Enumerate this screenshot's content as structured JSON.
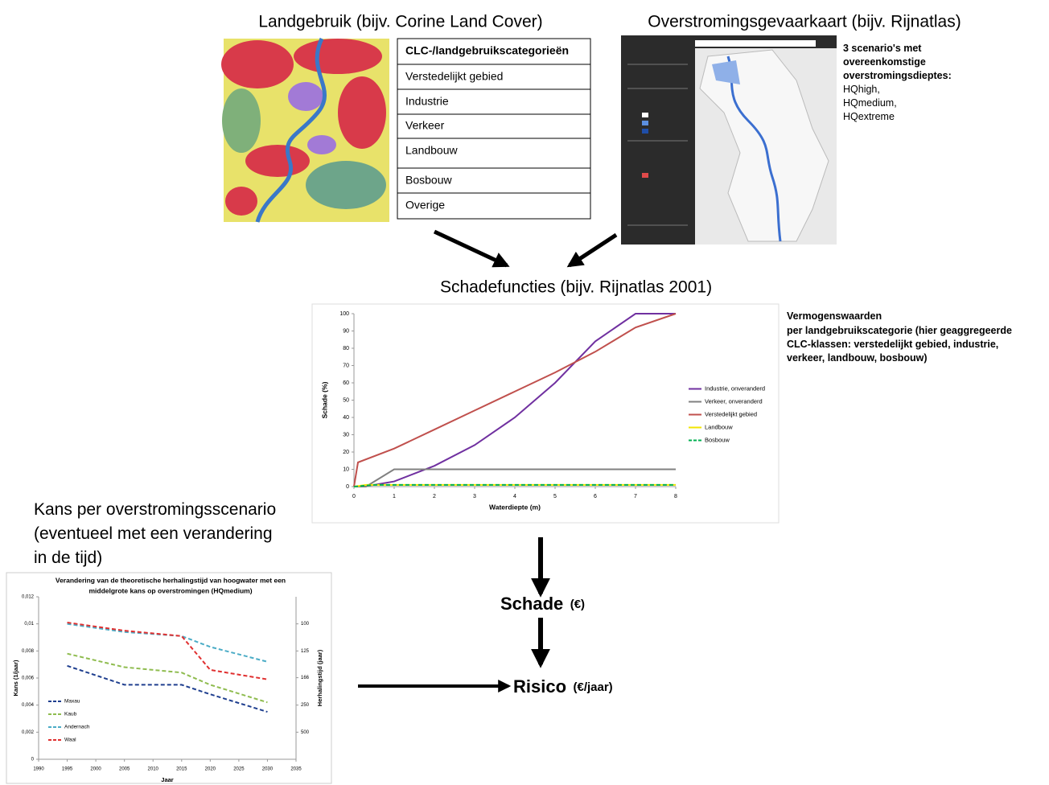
{
  "land_use": {
    "title": "Landgebruik (bijv. Corine Land Cover)",
    "table": {
      "header": "CLC-/landgebruikscategorieën",
      "rows": [
        "Verstedelijkt gebied",
        "Industrie",
        "Verkeer",
        "Landbouw",
        "Bosbouw",
        "Overige"
      ]
    }
  },
  "flood_map": {
    "title": "Overstromingsgevaarkaart (bijv. Rijnatlas)",
    "note": [
      "3 scenario's met",
      "overeenkomstige",
      "overstromingsdieptes:"
    ],
    "scenarios": [
      "HQhigh,",
      "HQmedium,",
      "HQextreme"
    ]
  },
  "damage": {
    "title": "Schadefuncties (bijv. Rijnatlas 2001)",
    "chart_data": {
      "type": "line",
      "xlabel": "Waterdiepte (m)",
      "ylabel": "Schade (%)",
      "xlim": [
        0,
        8
      ],
      "xticks": [
        0,
        1,
        2,
        3,
        4,
        5,
        6,
        7,
        8
      ],
      "ylim": [
        0,
        100
      ],
      "yticks": [
        0,
        10,
        20,
        30,
        40,
        50,
        60,
        70,
        80,
        90,
        100
      ],
      "legend": "right",
      "series": [
        {
          "name": "Industrie, onveranderd",
          "color": "#7030a0",
          "dashed": false,
          "x": [
            0,
            0.5,
            1,
            2,
            3,
            4,
            5,
            6,
            7,
            8
          ],
          "values": [
            0,
            1,
            3,
            12,
            24,
            40,
            60,
            84,
            100,
            100
          ]
        },
        {
          "name": "Verkeer, onveranderd",
          "color": "#808080",
          "dashed": false,
          "x": [
            0,
            0.3,
            1,
            8
          ],
          "values": [
            0,
            0,
            10,
            10
          ]
        },
        {
          "name": "Verstedelijkt gebied",
          "color": "#c0504d",
          "dashed": false,
          "x": [
            0,
            0.1,
            1,
            2,
            3,
            4,
            5,
            6,
            7,
            8
          ],
          "values": [
            0,
            14,
            22,
            33,
            44,
            55,
            66,
            78,
            92,
            100
          ]
        },
        {
          "name": "Landbouw",
          "color": "#f2e600",
          "dashed": false,
          "x": [
            0,
            0.3,
            8
          ],
          "values": [
            0,
            1,
            1
          ]
        },
        {
          "name": "Bosbouw",
          "color": "#00b050",
          "dashed": true,
          "x": [
            0,
            0.5,
            8
          ],
          "values": [
            0,
            1,
            1
          ]
        }
      ]
    },
    "asset_note": {
      "title": "Vermogenswaarden",
      "lines": [
        "per landgebruikscategorie (hier geaggregeerde",
        "CLC-klassen: verstedelijkt gebied, industrie,",
        "verkeer, landbouw, bosbouw)"
      ]
    }
  },
  "probability": {
    "title": [
      "Kans per overstromingsscenario",
      "(eventueel met een verandering",
      "in de tijd)"
    ],
    "chart_data": {
      "type": "line",
      "title": [
        "Verandering van de theoretische herhalingstijd van hoogwater met een",
        "middelgrote kans op overstromingen (HQmedium)"
      ],
      "xlabel": "Jaar",
      "ylabel": "Kans (1/jaar)",
      "y2label": "Herhalingstijd (jaar)",
      "xlim": [
        1990,
        2035
      ],
      "xticks": [
        1990,
        1995,
        2000,
        2005,
        2010,
        2015,
        2020,
        2025,
        2030,
        2035
      ],
      "ylim": [
        0,
        0.012
      ],
      "yticks": [
        0,
        {
          "value": 0.002,
          "label": "0,002"
        },
        {
          "value": 0.004,
          "label": "0,004"
        },
        {
          "value": 0.006,
          "label": "0,006"
        },
        {
          "value": 0.008,
          "label": "0,008"
        },
        {
          "value": 0.01,
          "label": "0,01"
        },
        {
          "value": 0.012,
          "label": "0,012"
        }
      ],
      "y2scale": "reciprocal",
      "y2ticks": [
        100,
        125,
        166,
        250,
        500
      ],
      "legend": "lower left",
      "x": [
        1995,
        2005,
        2015,
        2020,
        2030
      ],
      "series": [
        {
          "name": "Maxau",
          "color": "#1f3f8f",
          "dashed": true,
          "values": [
            0.0069,
            0.0055,
            0.0055,
            0.0048,
            0.0035
          ]
        },
        {
          "name": "Kaub",
          "color": "#8fbc4f",
          "dashed": true,
          "values": [
            0.0078,
            0.0068,
            0.0064,
            0.0055,
            0.0042
          ]
        },
        {
          "name": "Andernach",
          "color": "#4bacc6",
          "dashed": true,
          "values": [
            0.01,
            0.0094,
            0.0091,
            0.0083,
            0.0072
          ]
        },
        {
          "name": "Waal",
          "color": "#e03030",
          "dashed": true,
          "values": [
            0.0101,
            0.0095,
            0.0091,
            0.0066,
            0.0059
          ]
        }
      ]
    }
  },
  "damage_result": {
    "label": "Schade",
    "unit": "(€)"
  },
  "risk": {
    "label": "Risico",
    "unit": "(€/jaar)"
  }
}
